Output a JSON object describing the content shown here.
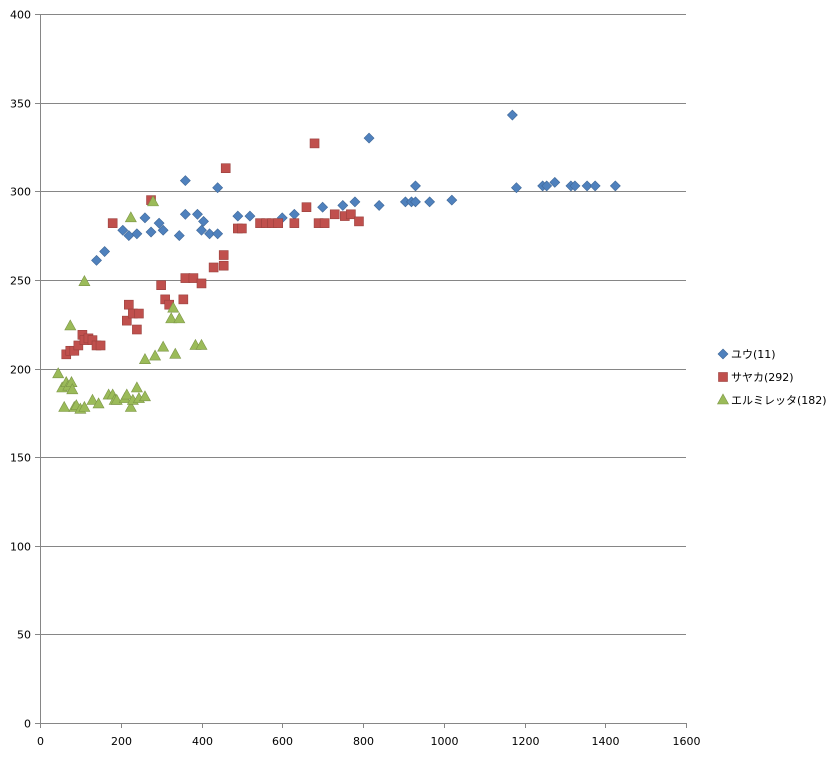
{
  "chart_data": {
    "type": "scatter",
    "title": "",
    "xlabel": "",
    "ylabel": "",
    "xlim": [
      0,
      1600
    ],
    "ylim": [
      0,
      400
    ],
    "x_ticks": [
      0,
      200,
      400,
      600,
      800,
      1000,
      1200,
      1400,
      1600
    ],
    "y_ticks": [
      0,
      50,
      100,
      150,
      200,
      250,
      300,
      350,
      400
    ],
    "grid": "horizontal",
    "legend_position": "right",
    "series": [
      {
        "name": "ユウ(11)",
        "marker": "diamond",
        "color": "#4F81BD",
        "points": [
          [
            140,
            261
          ],
          [
            160,
            266
          ],
          [
            205,
            278
          ],
          [
            220,
            275
          ],
          [
            240,
            276
          ],
          [
            260,
            285
          ],
          [
            275,
            277
          ],
          [
            295,
            282
          ],
          [
            305,
            278
          ],
          [
            345,
            275
          ],
          [
            360,
            306
          ],
          [
            360,
            287
          ],
          [
            390,
            287
          ],
          [
            400,
            278
          ],
          [
            405,
            283
          ],
          [
            420,
            276
          ],
          [
            440,
            302
          ],
          [
            440,
            276
          ],
          [
            490,
            286
          ],
          [
            520,
            286
          ],
          [
            600,
            285
          ],
          [
            630,
            287
          ],
          [
            700,
            291
          ],
          [
            750,
            292
          ],
          [
            780,
            294
          ],
          [
            815,
            330
          ],
          [
            840,
            292
          ],
          [
            905,
            294
          ],
          [
            920,
            294
          ],
          [
            930,
            303
          ],
          [
            930,
            294
          ],
          [
            965,
            294
          ],
          [
            1020,
            295
          ],
          [
            1170,
            343
          ],
          [
            1180,
            302
          ],
          [
            1245,
            303
          ],
          [
            1255,
            303
          ],
          [
            1275,
            305
          ],
          [
            1315,
            303
          ],
          [
            1325,
            303
          ],
          [
            1355,
            303
          ],
          [
            1375,
            303
          ],
          [
            1425,
            303
          ]
        ]
      },
      {
        "name": "サヤカ(292)",
        "marker": "square",
        "color": "#C0504D",
        "points": [
          [
            65,
            208
          ],
          [
            75,
            210
          ],
          [
            85,
            210
          ],
          [
            95,
            213
          ],
          [
            105,
            219
          ],
          [
            110,
            216
          ],
          [
            120,
            217
          ],
          [
            130,
            216
          ],
          [
            140,
            213
          ],
          [
            150,
            213
          ],
          [
            180,
            282
          ],
          [
            215,
            227
          ],
          [
            220,
            236
          ],
          [
            230,
            231
          ],
          [
            240,
            222
          ],
          [
            245,
            231
          ],
          [
            275,
            295
          ],
          [
            300,
            247
          ],
          [
            310,
            239
          ],
          [
            320,
            236
          ],
          [
            355,
            239
          ],
          [
            360,
            251
          ],
          [
            380,
            251
          ],
          [
            400,
            248
          ],
          [
            430,
            257
          ],
          [
            455,
            264
          ],
          [
            455,
            258
          ],
          [
            460,
            313
          ],
          [
            490,
            279
          ],
          [
            500,
            279
          ],
          [
            545,
            282
          ],
          [
            560,
            282
          ],
          [
            575,
            282
          ],
          [
            590,
            282
          ],
          [
            630,
            282
          ],
          [
            660,
            291
          ],
          [
            680,
            327
          ],
          [
            690,
            282
          ],
          [
            705,
            282
          ],
          [
            730,
            287
          ],
          [
            755,
            286
          ],
          [
            770,
            287
          ],
          [
            790,
            283
          ]
        ]
      },
      {
        "name": "エルミレッタ(182)",
        "marker": "triangle",
        "color": "#9BBB59",
        "points": [
          [
            45,
            197
          ],
          [
            55,
            189
          ],
          [
            60,
            178
          ],
          [
            65,
            192
          ],
          [
            70,
            190
          ],
          [
            75,
            224
          ],
          [
            78,
            192
          ],
          [
            80,
            188
          ],
          [
            85,
            178
          ],
          [
            90,
            179
          ],
          [
            100,
            177
          ],
          [
            110,
            249
          ],
          [
            110,
            178
          ],
          [
            130,
            182
          ],
          [
            145,
            180
          ],
          [
            170,
            185
          ],
          [
            180,
            185
          ],
          [
            185,
            182
          ],
          [
            190,
            182
          ],
          [
            210,
            183
          ],
          [
            215,
            185
          ],
          [
            225,
            285
          ],
          [
            225,
            178
          ],
          [
            230,
            182
          ],
          [
            240,
            189
          ],
          [
            245,
            183
          ],
          [
            260,
            205
          ],
          [
            260,
            184
          ],
          [
            280,
            294
          ],
          [
            285,
            207
          ],
          [
            305,
            212
          ],
          [
            325,
            228
          ],
          [
            330,
            234
          ],
          [
            335,
            208
          ],
          [
            345,
            228
          ],
          [
            385,
            213
          ],
          [
            400,
            213
          ]
        ]
      }
    ]
  }
}
